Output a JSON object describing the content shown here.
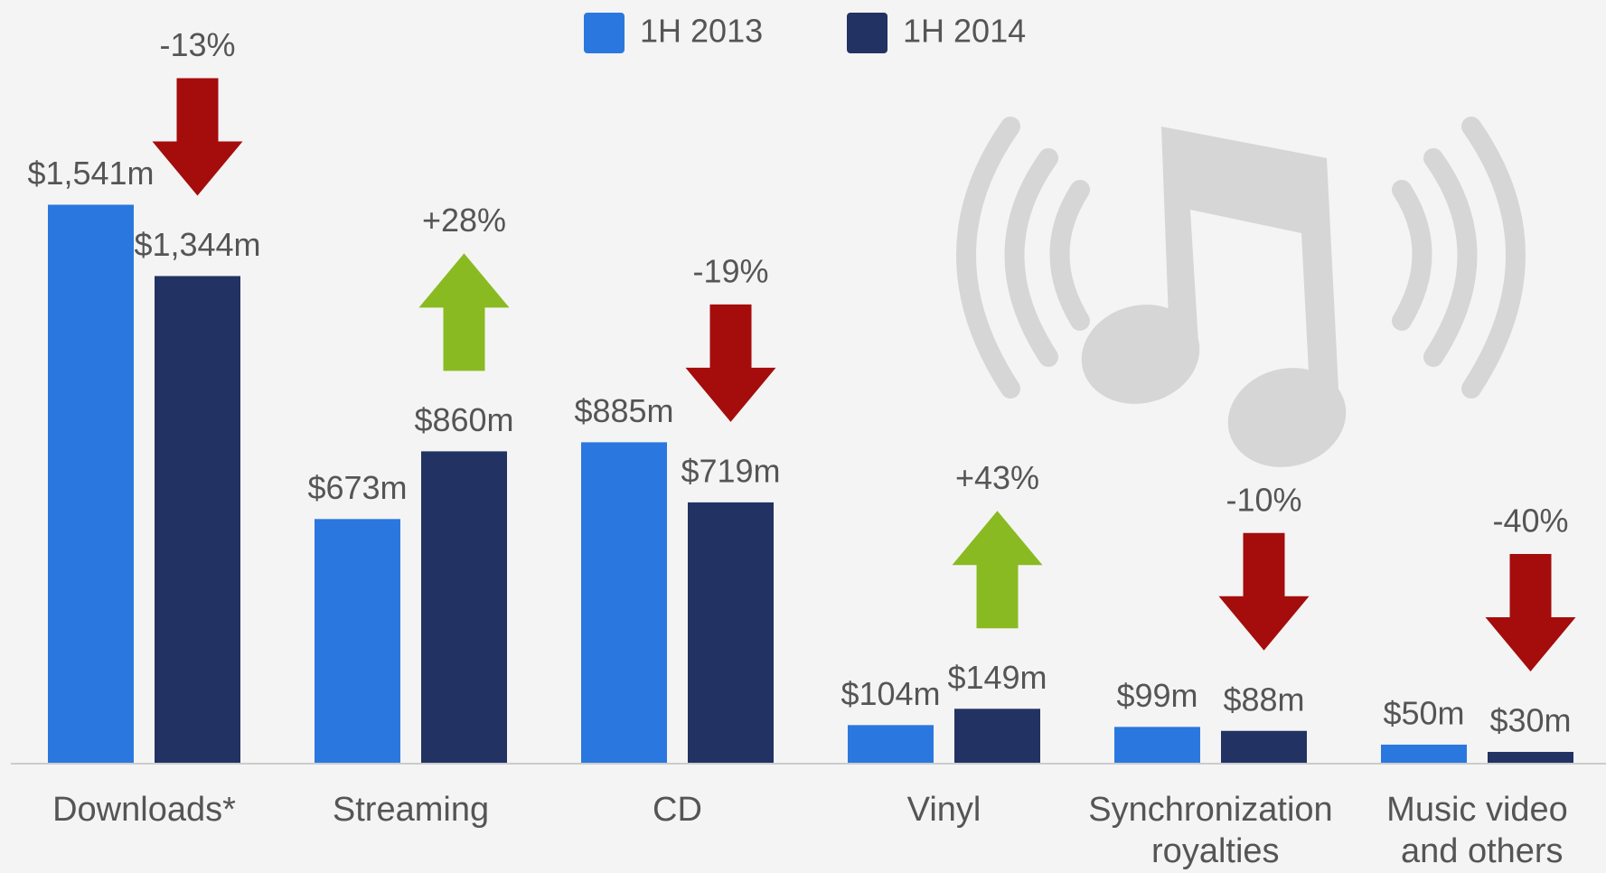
{
  "chart_data": {
    "type": "bar",
    "categories": [
      "Downloads*",
      "Streaming",
      "CD",
      "Vinyl",
      "Synchronization royalties",
      "Music video and others"
    ],
    "series": [
      {
        "name": "1H 2013",
        "color": "#2a78df",
        "values": [
          1541,
          673,
          885,
          104,
          99,
          50
        ],
        "value_labels": [
          "$1,541m",
          "$673m",
          "$885m",
          "$104m",
          "$99m",
          "$50m"
        ]
      },
      {
        "name": "1H 2014",
        "color": "#223363",
        "values": [
          1344,
          860,
          719,
          149,
          88,
          30
        ],
        "value_labels": [
          "$1,344m",
          "$860m",
          "$719m",
          "$149m",
          "$88m",
          "$30m"
        ]
      }
    ],
    "changes": {
      "values": [
        -13,
        28,
        -19,
        43,
        -10,
        -40
      ],
      "value_labels": [
        "-13%",
        "+28%",
        "-19%",
        "+43%",
        "-10%",
        "-40%"
      ],
      "increase_color": "#8aba22",
      "decrease_color": "#a50c0c"
    },
    "legend": "top"
  }
}
